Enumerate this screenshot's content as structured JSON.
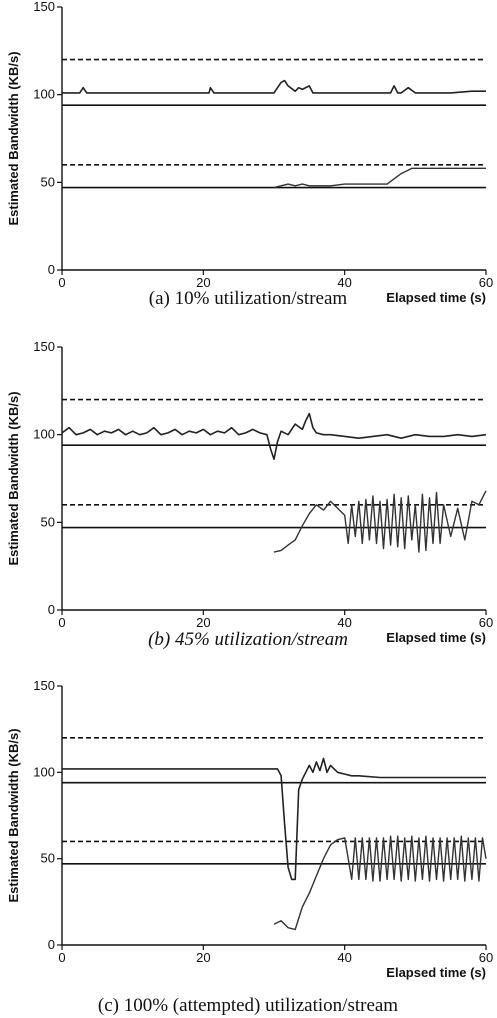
{
  "chart_data": [
    {
      "type": "line",
      "caption": "(a) 10% utilization/stream",
      "caption_italic": false,
      "xlabel": "Elapsed time (s)",
      "ylabel": "Estimated Bandwidth (KB/s)",
      "xlim": [
        0,
        60
      ],
      "ylim": [
        0,
        150
      ],
      "xticks": [
        0,
        20,
        40,
        60
      ],
      "yticks": [
        0,
        50,
        100,
        150
      ],
      "grid": false,
      "reference_lines": [
        {
          "y": 120,
          "style": "dashed"
        },
        {
          "y": 94,
          "style": "solid"
        },
        {
          "y": 60,
          "style": "dashed"
        },
        {
          "y": 47,
          "style": "solid"
        }
      ],
      "series": [
        {
          "x": [
            0,
            2.5,
            3,
            3.5,
            4,
            6,
            10,
            15,
            20,
            20.8,
            21,
            21.5,
            22,
            25,
            28,
            30,
            30.5,
            31,
            31.5,
            32,
            33,
            33.5,
            34,
            35,
            35.5,
            36,
            38,
            40,
            45,
            46.5,
            47,
            47.5,
            48,
            49,
            50,
            53,
            55,
            58,
            60
          ],
          "y": [
            101,
            101,
            104,
            101,
            101,
            101,
            101,
            101,
            101,
            101,
            104,
            101,
            101,
            101,
            101,
            101,
            104,
            107,
            108,
            105,
            102,
            104,
            103,
            105,
            101,
            101,
            101,
            101,
            101,
            101,
            105,
            101,
            101,
            104,
            101,
            101,
            101,
            102,
            102
          ]
        },
        {
          "x": [
            30,
            31,
            32,
            33,
            34,
            35,
            36,
            38,
            40,
            42,
            44,
            46,
            47,
            48,
            49,
            49.5,
            50,
            55,
            60
          ],
          "y": [
            47,
            48,
            49,
            48,
            49,
            48,
            48,
            48,
            49,
            49,
            49,
            49,
            52,
            55,
            57,
            58,
            58,
            58,
            58
          ]
        }
      ]
    },
    {
      "type": "line",
      "caption": "(b) 45% utilization/stream",
      "caption_italic": true,
      "xlabel": "Elapsed time (s)",
      "ylabel": "Estimated Bandwidth (KB/s)",
      "xlim": [
        0,
        60
      ],
      "ylim": [
        0,
        150
      ],
      "xticks": [
        0,
        20,
        40,
        60
      ],
      "yticks": [
        0,
        50,
        100,
        150
      ],
      "grid": false,
      "reference_lines": [
        {
          "y": 120,
          "style": "dashed"
        },
        {
          "y": 94,
          "style": "solid"
        },
        {
          "y": 60,
          "style": "dashed"
        },
        {
          "y": 47,
          "style": "solid"
        }
      ],
      "series": [
        {
          "x": [
            0,
            1,
            2,
            3,
            4,
            5,
            6,
            7,
            8,
            9,
            10,
            11,
            12,
            13,
            14,
            15,
            16,
            17,
            18,
            19,
            20,
            21,
            22,
            23,
            24,
            25,
            26,
            27,
            28,
            29,
            29.5,
            30,
            30.5,
            31,
            32,
            33,
            34,
            34.5,
            35,
            35.5,
            36,
            37,
            38,
            40,
            42,
            44,
            46,
            48,
            50,
            52,
            54,
            56,
            58,
            60
          ],
          "y": [
            101,
            104,
            100,
            101,
            103,
            100,
            102,
            101,
            103,
            100,
            102,
            100,
            101,
            104,
            100,
            101,
            103,
            100,
            102,
            101,
            103,
            100,
            102,
            101,
            104,
            100,
            101,
            103,
            101,
            100,
            92,
            86,
            96,
            102,
            100,
            106,
            103,
            108,
            112,
            104,
            101,
            100,
            100,
            99,
            98,
            99,
            100,
            98,
            100,
            99,
            99,
            100,
            99,
            100
          ]
        },
        {
          "x": [
            30,
            31,
            32,
            33,
            34,
            35,
            36,
            37,
            38,
            39,
            40,
            40.5,
            41,
            41.5,
            42,
            42.5,
            43,
            43.5,
            44,
            44.5,
            45,
            45.5,
            46,
            46.5,
            47,
            47.5,
            48,
            48.5,
            49,
            49.5,
            50,
            50.5,
            51,
            51.5,
            52,
            52.5,
            53,
            53.5,
            54,
            55,
            56,
            57,
            58,
            59,
            60
          ],
          "y": [
            33,
            34,
            37,
            40,
            48,
            55,
            60,
            57,
            62,
            58,
            54,
            38,
            60,
            42,
            62,
            38,
            63,
            40,
            65,
            38,
            62,
            35,
            63,
            37,
            66,
            36,
            64,
            35,
            65,
            40,
            60,
            33,
            66,
            34,
            64,
            38,
            67,
            38,
            60,
            42,
            58,
            40,
            62,
            60,
            68
          ]
        }
      ]
    },
    {
      "type": "line",
      "caption": "(c) 100% (attempted) utilization/stream",
      "caption_italic": false,
      "xlabel": "Elapsed time (s)",
      "ylabel": "Estimated Bandwidth (KB/s)",
      "xlim": [
        0,
        60
      ],
      "ylim": [
        0,
        150
      ],
      "xticks": [
        0,
        20,
        40,
        60
      ],
      "yticks": [
        0,
        50,
        100,
        150
      ],
      "grid": false,
      "reference_lines": [
        {
          "y": 120,
          "style": "dashed"
        },
        {
          "y": 94,
          "style": "solid"
        },
        {
          "y": 60,
          "style": "dashed"
        },
        {
          "y": 47,
          "style": "solid"
        }
      ],
      "series": [
        {
          "x": [
            0,
            5,
            10,
            15,
            20,
            25,
            29,
            30.5,
            31,
            31.5,
            32,
            32.5,
            33,
            33.5,
            34,
            34.5,
            35,
            35.5,
            36,
            36.5,
            37,
            37.5,
            38,
            39,
            40,
            41,
            42,
            45,
            50,
            55,
            60
          ],
          "y": [
            102,
            102,
            102,
            102,
            102,
            102,
            102,
            102,
            98,
            70,
            45,
            38,
            38,
            90,
            96,
            100,
            104,
            100,
            106,
            101,
            108,
            100,
            104,
            100,
            99,
            98,
            98,
            97,
            97,
            97,
            97
          ]
        },
        {
          "x": [
            30,
            31,
            32,
            33,
            34,
            35,
            36,
            37,
            38,
            39,
            40,
            41,
            41.5,
            42,
            42.5,
            43,
            43.5,
            44,
            44.5,
            45,
            45.5,
            46,
            46.5,
            47,
            47.5,
            48,
            48.5,
            49,
            49.5,
            50,
            50.5,
            51,
            51.5,
            52,
            52.5,
            53,
            53.5,
            54,
            54.5,
            55,
            55.5,
            56,
            56.5,
            57,
            57.5,
            58,
            58.5,
            59,
            59.5,
            60
          ],
          "y": [
            12,
            14,
            10,
            9,
            22,
            30,
            40,
            50,
            58,
            61,
            62,
            38,
            62,
            38,
            62,
            38,
            62,
            37,
            62,
            37,
            62,
            38,
            63,
            38,
            63,
            37,
            62,
            38,
            63,
            37,
            62,
            38,
            63,
            37,
            62,
            38,
            62,
            37,
            62,
            38,
            62,
            38,
            63,
            37,
            62,
            38,
            62,
            37,
            62,
            50
          ]
        }
      ]
    }
  ]
}
